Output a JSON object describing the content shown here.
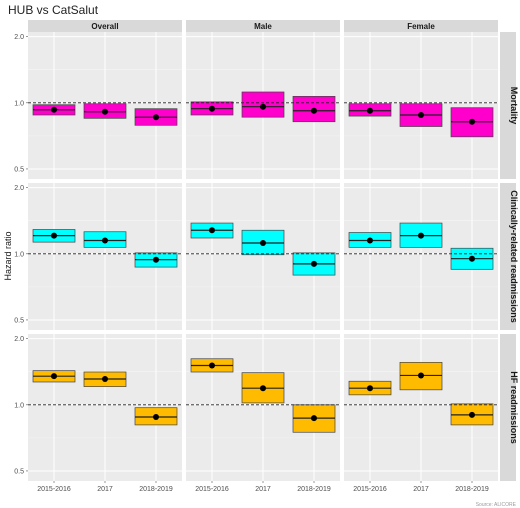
{
  "chart_data": {
    "type": "forest-box",
    "title": "HUB vs CatSalut",
    "ylabel": "Hazard ratio",
    "yscale": "log",
    "ylim": [
      0.45,
      2.1
    ],
    "yticks": [
      "0.5",
      "1.0",
      "2.0"
    ],
    "reference_line": 1.0,
    "categories": [
      "2015-2016",
      "2017",
      "2018-2019"
    ],
    "columns": [
      "Overall",
      "Male",
      "Female"
    ],
    "rows": [
      {
        "name": "Mortality",
        "color": "#ff00cc",
        "panels": [
          {
            "est": [
              0.93,
              0.91,
              0.86
            ],
            "lo": [
              0.88,
              0.85,
              0.79
            ],
            "hi": [
              0.98,
              0.99,
              0.94
            ]
          },
          {
            "est": [
              0.94,
              0.96,
              0.92
            ],
            "lo": [
              0.88,
              0.86,
              0.82
            ],
            "hi": [
              1.01,
              1.12,
              1.07
            ]
          },
          {
            "est": [
              0.92,
              0.88,
              0.82
            ],
            "lo": [
              0.87,
              0.78,
              0.7
            ],
            "hi": [
              0.99,
              0.99,
              0.95
            ]
          }
        ]
      },
      {
        "name": "Clinically-related readmissions",
        "color": "#00ffff",
        "panels": [
          {
            "est": [
              1.21,
              1.15,
              0.94
            ],
            "lo": [
              1.13,
              1.07,
              0.87
            ],
            "hi": [
              1.29,
              1.26,
              1.01
            ]
          },
          {
            "est": [
              1.28,
              1.12,
              0.9
            ],
            "lo": [
              1.18,
              0.99,
              0.8
            ],
            "hi": [
              1.38,
              1.28,
              1.01
            ]
          },
          {
            "est": [
              1.15,
              1.21,
              0.95
            ],
            "lo": [
              1.07,
              1.07,
              0.85
            ],
            "hi": [
              1.25,
              1.38,
              1.06
            ]
          }
        ]
      },
      {
        "name": "HF readmissions",
        "color": "#ffbb00",
        "panels": [
          {
            "est": [
              1.35,
              1.31,
              0.88
            ],
            "lo": [
              1.27,
              1.21,
              0.81
            ],
            "hi": [
              1.43,
              1.41,
              0.97
            ]
          },
          {
            "est": [
              1.51,
              1.19,
              0.87
            ],
            "lo": [
              1.41,
              1.02,
              0.75
            ],
            "hi": [
              1.62,
              1.4,
              1.0
            ]
          },
          {
            "est": [
              1.19,
              1.36,
              0.9
            ],
            "lo": [
              1.11,
              1.17,
              0.81
            ],
            "hi": [
              1.28,
              1.56,
              1.01
            ]
          }
        ]
      }
    ],
    "source_note": "Source: ALICORE"
  }
}
